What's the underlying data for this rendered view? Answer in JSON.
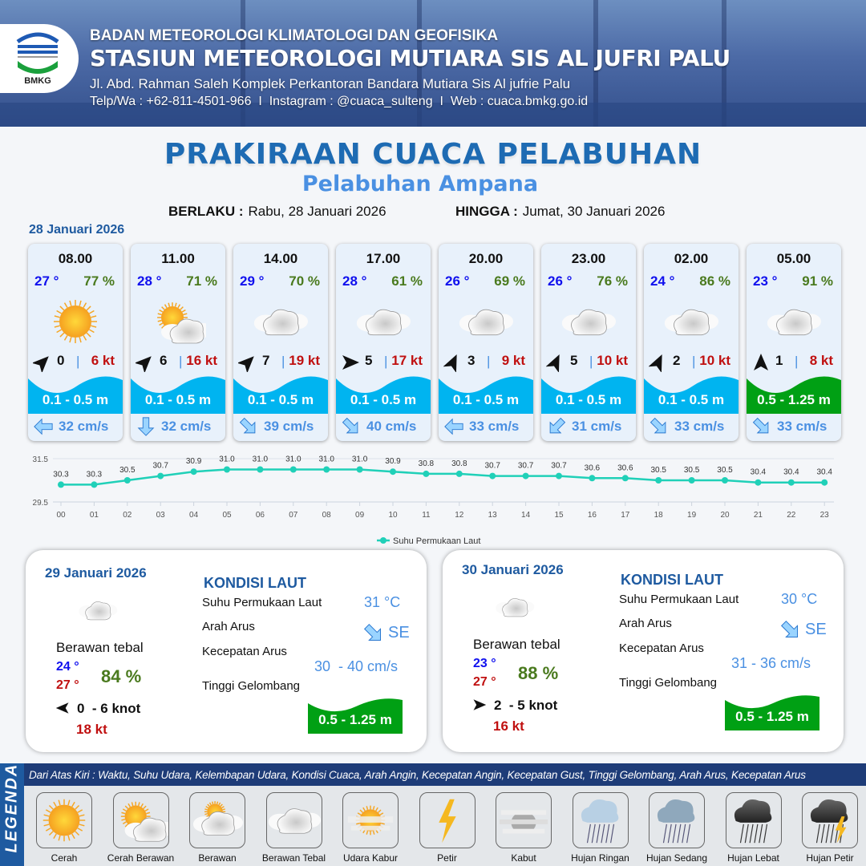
{
  "header": {
    "org": "BADAN METEOROLOGI KLIMATOLOGI DAN GEOFISIKA",
    "station": "STASIUN METEOROLOGI MUTIARA SIS AL JUFRI PALU",
    "address": "Jl. Abd. Rahman Saleh Komplek Perkantoran Bandara Mutiara Sis Al jufrie Palu",
    "contact": "Telp/Wa : +62-811-4501-966  I  Instagram : @cuaca_sulteng  I  Web : cuaca.bmkg.go.id",
    "logo_text": "BMKG"
  },
  "title": "PRAKIRAAN CUACA PELABUHAN",
  "subtitle": "Pelabuhan Ampana",
  "period": {
    "from_label": "BERLAKU :",
    "from": "Rabu, 28 Januari 2026",
    "to_label": "HINGGA :",
    "to": "Jumat, 30 Januari 2026"
  },
  "day1": {
    "date": "28 Januari 2026",
    "slots": [
      {
        "time": "08.00",
        "temp": "27 °",
        "hum": "77 %",
        "icon": "cerah",
        "wind_dir": "NE",
        "wind": "0",
        "gust": "6 kt",
        "wave": "0.1 - 0.5 m",
        "wave_color": "#00b4f0",
        "cur_dir": "W",
        "cur": "32 cm/s"
      },
      {
        "time": "11.00",
        "temp": "28 °",
        "hum": "71 %",
        "icon": "cerah-berawan",
        "wind_dir": "NE",
        "wind": "6",
        "gust": "16 kt",
        "wave": "0.1 - 0.5 m",
        "wave_color": "#00b4f0",
        "cur_dir": "S",
        "cur": "32 cm/s"
      },
      {
        "time": "14.00",
        "temp": "29 °",
        "hum": "70 %",
        "icon": "berawan-tebal",
        "wind_dir": "NE",
        "wind": "7",
        "gust": "19 kt",
        "wave": "0.1 - 0.5 m",
        "wave_color": "#00b4f0",
        "cur_dir": "SE",
        "cur": "39 cm/s"
      },
      {
        "time": "17.00",
        "temp": "28 °",
        "hum": "61 %",
        "icon": "berawan-tebal",
        "wind_dir": "E",
        "wind": "5",
        "gust": "17 kt",
        "wave": "0.1 - 0.5 m",
        "wave_color": "#00b4f0",
        "cur_dir": "SE",
        "cur": "40 cm/s"
      },
      {
        "time": "20.00",
        "temp": "26 °",
        "hum": "69 %",
        "icon": "berawan-tebal",
        "wind_dir": "NNE",
        "wind": "3",
        "gust": "9 kt",
        "wave": "0.1 - 0.5 m",
        "wave_color": "#00b4f0",
        "cur_dir": "W",
        "cur": "33 cm/s"
      },
      {
        "time": "23.00",
        "temp": "26 °",
        "hum": "76 %",
        "icon": "berawan-tebal",
        "wind_dir": "NNE",
        "wind": "5",
        "gust": "10 kt",
        "wave": "0.1 - 0.5 m",
        "wave_color": "#00b4f0",
        "cur_dir": "SW",
        "cur": "31 cm/s"
      },
      {
        "time": "02.00",
        "temp": "24 °",
        "hum": "86 %",
        "icon": "berawan-tebal",
        "wind_dir": "NNE",
        "wind": "2",
        "gust": "10 kt",
        "wave": "0.1 - 0.5 m",
        "wave_color": "#00b4f0",
        "cur_dir": "SE",
        "cur": "33 cm/s"
      },
      {
        "time": "05.00",
        "temp": "23 °",
        "hum": "91 %",
        "icon": "berawan-tebal",
        "wind_dir": "N",
        "wind": "1",
        "gust": "8 kt",
        "wave": "0.5 - 1.25 m",
        "wave_color": "#00a014",
        "cur_dir": "SE",
        "cur": "33 cm/s"
      }
    ]
  },
  "chart_data": {
    "type": "line",
    "x": [
      "00",
      "01",
      "02",
      "03",
      "04",
      "05",
      "06",
      "07",
      "08",
      "09",
      "10",
      "11",
      "12",
      "13",
      "14",
      "15",
      "16",
      "17",
      "18",
      "19",
      "20",
      "21",
      "22",
      "23"
    ],
    "series": [
      {
        "name": "Suhu Permukaan Laut",
        "values": [
          30.3,
          30.3,
          30.5,
          30.7,
          30.9,
          31.0,
          31.0,
          31.0,
          31.0,
          31.0,
          30.9,
          30.8,
          30.8,
          30.7,
          30.7,
          30.7,
          30.6,
          30.6,
          30.5,
          30.5,
          30.5,
          30.4,
          30.4,
          30.4
        ],
        "color": "#20d0b8"
      }
    ],
    "yticks": [
      "31.5",
      "29.5"
    ],
    "ylim": [
      29.5,
      31.5
    ],
    "grid": true,
    "legend": "bottom"
  },
  "panels": [
    {
      "date": "29 Januari 2026",
      "icon": "berawan-tebal",
      "condition": "Berawan tebal",
      "tmin": "24 °",
      "tmax": "27 °",
      "hum": "84 %",
      "wind_dir": "W",
      "wind": "0  - 6 knot",
      "gust": "18 kt",
      "sea_title": "KONDISI LAUT",
      "sst_label": "Suhu Permukaan Laut",
      "sst": "31 °C",
      "cur_dir_label": "Arah Arus",
      "cur_dir": "SE",
      "cur_spd_label": "Kecepatan Arus",
      "cur_spd": "30  - 40 cm/s",
      "wave_label": "Tinggi Gelombang",
      "wave": "0.5 - 1.25 m"
    },
    {
      "date": "30 Januari 2026",
      "icon": "berawan-tebal",
      "condition": "Berawan tebal",
      "tmin": "23 °",
      "tmax": "27 °",
      "hum": "88 %",
      "wind_dir": "E",
      "wind": "2  - 5 knot",
      "gust": "16 kt",
      "sea_title": "KONDISI LAUT",
      "sst_label": "Suhu Permukaan Laut",
      "sst": "30 °C",
      "cur_dir_label": "Arah Arus",
      "cur_dir": "SE",
      "cur_spd_label": "Kecepatan Arus",
      "cur_spd": "31 - 36 cm/s",
      "wave_label": "Tinggi Gelombang",
      "wave": "0.5 - 1.25 m"
    }
  ],
  "legend": {
    "title": "LEGENDA",
    "description": "Dari Atas Kiri : Waktu, Suhu Udara, Kelembapan Udara, Kondisi Cuaca, Arah Angin, Kecepatan Angin, Kecepatan Gust, Tinggi Gelombang, Arah Arus, Kecepatan Arus",
    "items": [
      {
        "label": "Cerah",
        "icon": "cerah"
      },
      {
        "label": "Cerah Berawan",
        "icon": "cerah-berawan"
      },
      {
        "label": "Berawan",
        "icon": "berawan"
      },
      {
        "label": "Berawan Tebal",
        "icon": "berawan-tebal"
      },
      {
        "label": "Udara Kabur",
        "icon": "udara-kabur"
      },
      {
        "label": "Petir",
        "icon": "petir"
      },
      {
        "label": "Kabut",
        "icon": "kabut"
      },
      {
        "label": "Hujan Ringan",
        "icon": "hujan-ringan"
      },
      {
        "label": "Hujan Sedang",
        "icon": "hujan-sedang"
      },
      {
        "label": "Hujan Lebat",
        "icon": "hujan-lebat"
      },
      {
        "label": "Hujan Petir",
        "icon": "hujan-petir"
      }
    ]
  }
}
